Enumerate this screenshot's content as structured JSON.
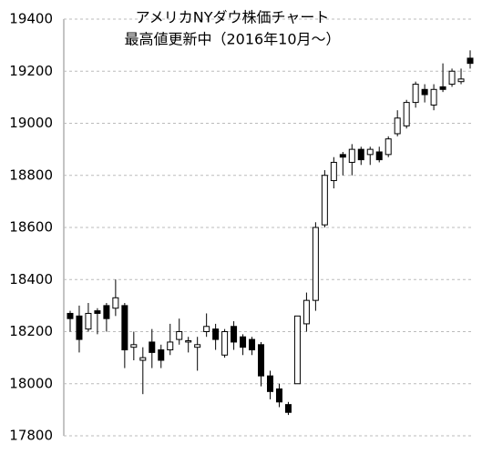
{
  "chart_data": {
    "type": "candlestick",
    "title": "アメリカNYダウ株価チャート",
    "subtitle": "最高値更新中（2016年10月～）",
    "open": [
      18270,
      18260,
      18210,
      18280,
      18300,
      18290,
      18300,
      18140,
      18090,
      18160,
      18130,
      18130,
      18170,
      18160,
      18140,
      18200,
      18210,
      18110,
      18220,
      18180,
      18170,
      18150,
      18030,
      17980,
      17920,
      18000,
      18230,
      18320,
      18610,
      18780,
      18880,
      18850,
      18900,
      18880,
      18890,
      18880,
      18960,
      18990,
      19080,
      19130,
      19070,
      19140,
      19150,
      19160,
      19250
    ],
    "high": [
      18280,
      18300,
      18310,
      18290,
      18310,
      18400,
      18310,
      18200,
      18140,
      18210,
      18150,
      18230,
      18250,
      18180,
      18180,
      18270,
      18230,
      18210,
      18240,
      18190,
      18180,
      18160,
      18050,
      18000,
      17930,
      18260,
      18350,
      18620,
      18820,
      18870,
      18890,
      18920,
      18910,
      18910,
      18910,
      18950,
      19050,
      19090,
      19160,
      19150,
      19150,
      19230,
      19210,
      19210,
      19280
    ],
    "low": [
      18200,
      18120,
      18200,
      18190,
      18200,
      18260,
      18060,
      18090,
      17960,
      18060,
      18060,
      18110,
      18150,
      18120,
      18050,
      18180,
      18130,
      18100,
      18130,
      18110,
      18110,
      17990,
      17940,
      17910,
      17880,
      18000,
      18200,
      18280,
      18600,
      18750,
      18800,
      18800,
      18840,
      18840,
      18850,
      18870,
      18950,
      18980,
      19060,
      19080,
      19050,
      19120,
      19140,
      19150,
      19210
    ],
    "close": [
      18250,
      18170,
      18270,
      18270,
      18250,
      18330,
      18130,
      18150,
      18100,
      18120,
      18090,
      18160,
      18200,
      18165,
      18150,
      18220,
      18170,
      18200,
      18160,
      18140,
      18130,
      18030,
      17970,
      17930,
      17890,
      18260,
      18320,
      18600,
      18800,
      18850,
      18870,
      18900,
      18860,
      18900,
      18860,
      18940,
      19020,
      19080,
      19150,
      19110,
      19130,
      19130,
      19200,
      19170,
      19230
    ],
    "up_color": "#ffffff",
    "down_color": "#000000",
    "ylim": [
      17800,
      19400
    ],
    "yticks": [
      17800,
      18000,
      18200,
      18400,
      18600,
      18800,
      19000,
      19200,
      19400
    ],
    "grid": true
  }
}
